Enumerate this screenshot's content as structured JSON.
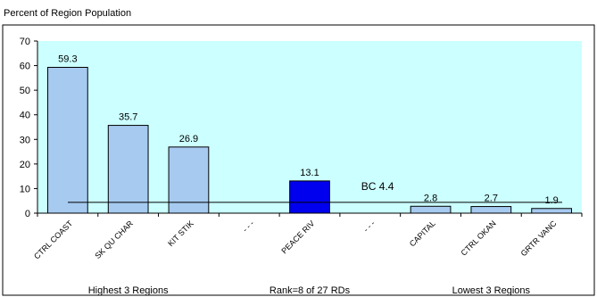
{
  "chart_data": {
    "type": "bar",
    "title": "",
    "ylabel": "Percent of Region Population",
    "xlabel": "",
    "ylim": [
      0,
      70
    ],
    "yticks": [
      0,
      10,
      20,
      30,
      40,
      50,
      60,
      70
    ],
    "categories": [
      "CTRL COAST",
      "SK QU CHAR",
      "KIT STIK",
      "- - -",
      "PEACE RIV",
      "- - -",
      "CAPITAL",
      "CTRL OKAN",
      "GRTR VANC"
    ],
    "values": [
      59.3,
      35.7,
      26.9,
      null,
      13.1,
      null,
      2.8,
      2.7,
      1.9
    ],
    "value_labels": [
      "59.3",
      "35.7",
      "26.9",
      "",
      "13.1",
      "",
      "2.8",
      "2.7",
      "1.9"
    ],
    "highlight_index": 4,
    "reference_line": {
      "value": 4.4,
      "label": "BC 4.4"
    },
    "group_labels": [
      "Highest 3 Regions",
      "Rank=8 of 27 RDs",
      "Lowest 3 Regions"
    ],
    "colors": {
      "bar": "#a6caf0",
      "highlight": "#0000ee",
      "plot_background": "#ccffff",
      "border": "#000000"
    },
    "grid": false
  }
}
